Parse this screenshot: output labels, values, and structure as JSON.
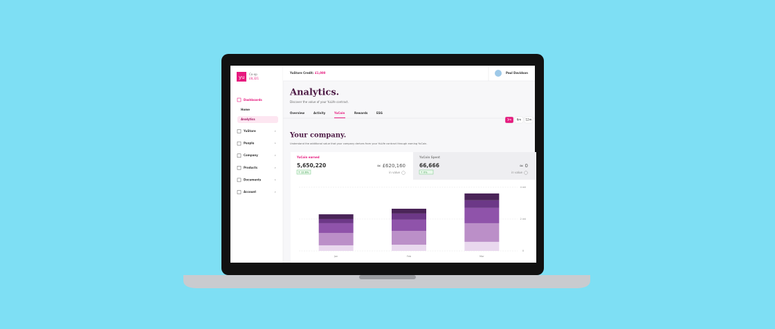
{
  "app": {
    "logo": "yu",
    "company": "Co-op",
    "company_sub": "£8,321",
    "nav": {
      "section": "Dashboards",
      "sub": [
        "Home",
        "Analytics"
      ],
      "items": [
        "YuStore",
        "People",
        "Company",
        "Products",
        "Documents",
        "Account"
      ]
    },
    "topbar": {
      "credit_label": "YuStore Credit:",
      "credit_value": "£1,000",
      "user": "Paul Davidson"
    },
    "page": {
      "title": "Analytics.",
      "subtitle": "Discover the value of your YuLife contract.",
      "tabs": [
        "Overview",
        "Activity",
        "YuCoin",
        "Rewards",
        "ESG"
      ],
      "ranges": [
        "3m",
        "6m",
        "12m"
      ],
      "section_title": "Your company.",
      "section_text": "Understand the additional value that your company derives from your YuLife contract through earning YuCoin."
    },
    "cards": [
      {
        "label": "YuCoin earned",
        "value": "5,650,220",
        "change": "↑ 12.6%",
        "equiv": "≈ £620,160",
        "note": "in value"
      },
      {
        "label": "YuCoin Spent",
        "value": "66,666",
        "change": "↑ 0%",
        "equiv": "≈ 0",
        "note": "in value"
      }
    ]
  },
  "chart_data": {
    "type": "stacked-bar",
    "categories": [
      "Jan",
      "Feb",
      "Mar"
    ],
    "series": [
      {
        "color": "#e9d8ee",
        "values": [
          0.35,
          0.39,
          0.57
        ]
      },
      {
        "color": "#bb8fc8",
        "values": [
          0.78,
          0.87,
          1.17
        ]
      },
      {
        "color": "#8f53aa",
        "values": [
          0.61,
          0.7,
          0.96
        ]
      },
      {
        "color": "#6c3887",
        "values": [
          0.26,
          0.39,
          0.48
        ]
      },
      {
        "color": "#4a2458",
        "values": [
          0.3,
          0.3,
          0.43
        ]
      }
    ],
    "ylim": [
      0,
      4.3
    ],
    "yticks": [
      0,
      {
        "value": 2,
        "label": "2 mil"
      },
      {
        "value": 4,
        "label": "4 mil"
      }
    ],
    "grid": true
  }
}
